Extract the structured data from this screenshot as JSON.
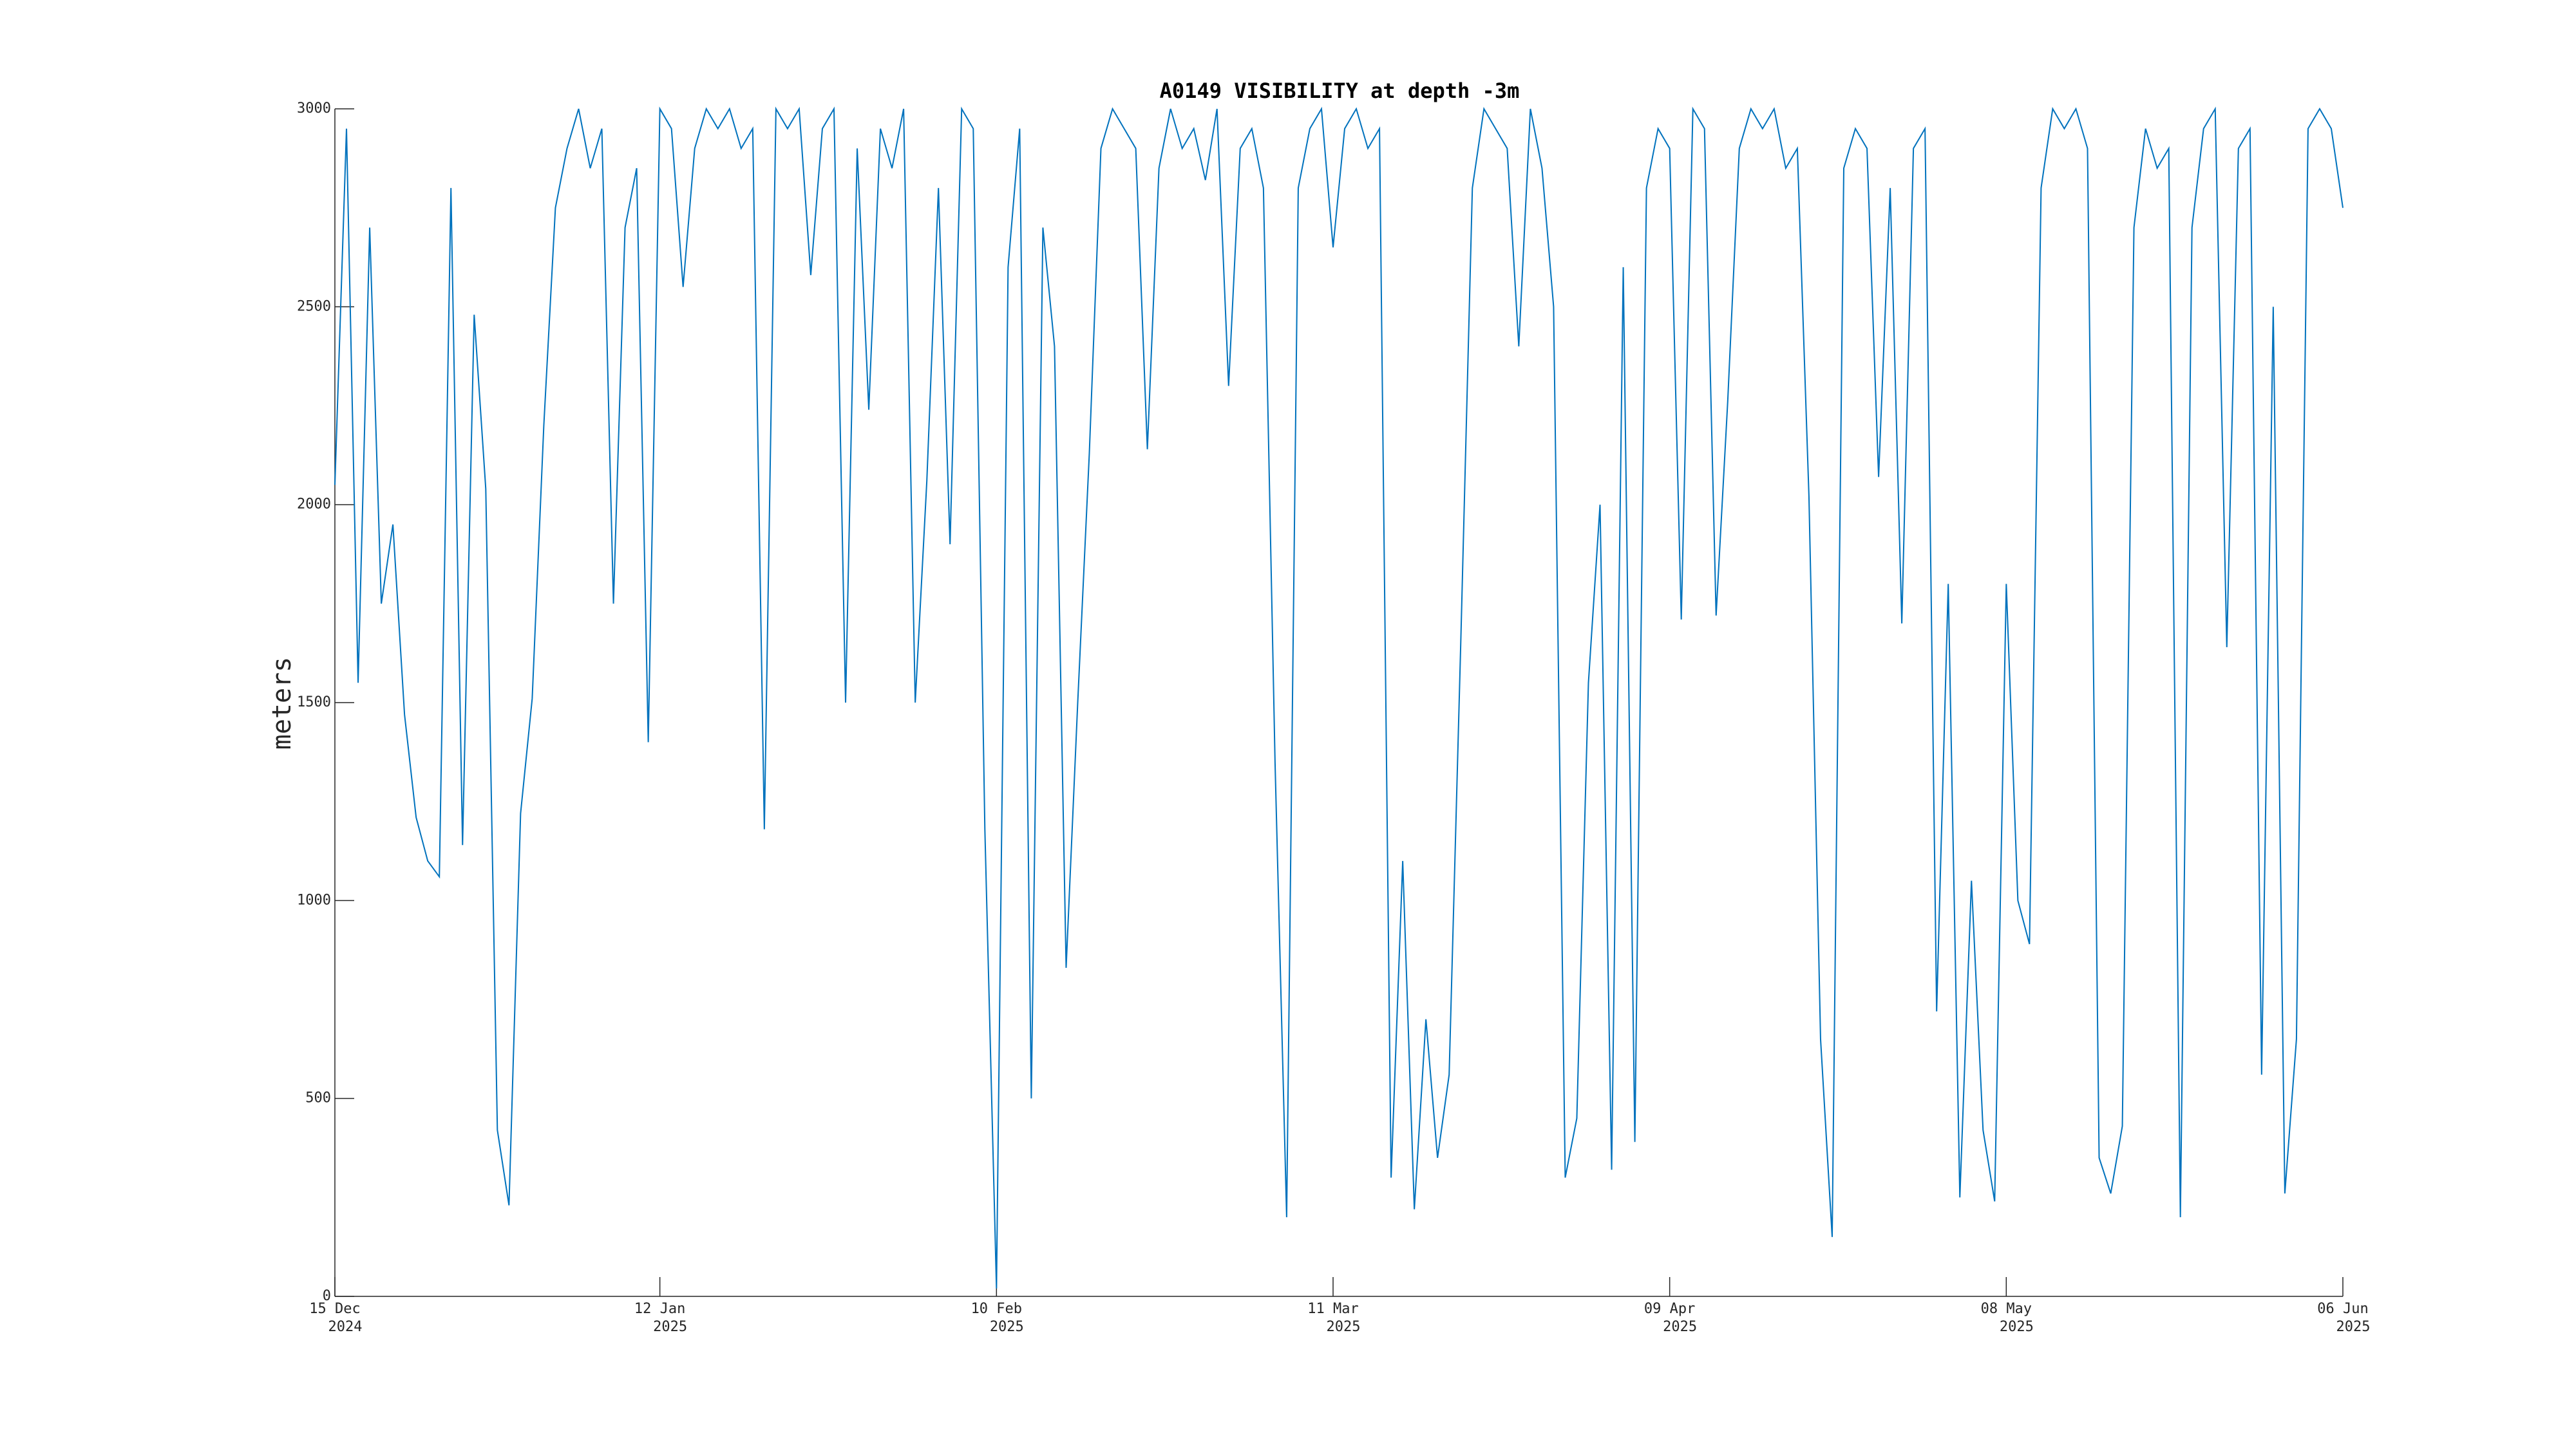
{
  "chart_data": {
    "type": "line",
    "title": "A0149 VISIBILITY at depth -3m",
    "y_label": "meters",
    "color": "#0072bd",
    "grid": false,
    "xlim": [
      "2024-12-15",
      "2025-06-06"
    ],
    "xticks": [
      {
        "value": "2024-12-15",
        "label": [
          "15 Dec",
          "2024"
        ]
      },
      {
        "value": "2025-01-12",
        "label": [
          "12 Jan",
          "2025"
        ]
      },
      {
        "value": "2025-02-10",
        "label": [
          "10 Feb",
          "2025"
        ]
      },
      {
        "value": "2025-03-11",
        "label": [
          "11 Mar",
          "2025"
        ]
      },
      {
        "value": "2025-04-09",
        "label": [
          "09 Apr",
          "2025"
        ]
      },
      {
        "value": "2025-05-08",
        "label": [
          "08 May",
          "2025"
        ]
      },
      {
        "value": "2025-06-06",
        "label": [
          "06 Jun",
          "2025"
        ]
      }
    ],
    "ylim": [
      0,
      3000
    ],
    "yticks": [
      0,
      500,
      1000,
      1500,
      2000,
      2500,
      3000
    ],
    "x": [
      "2024-12-15",
      "2024-12-16",
      "2024-12-17",
      "2024-12-18",
      "2024-12-19",
      "2024-12-20",
      "2024-12-21",
      "2024-12-22",
      "2024-12-23",
      "2024-12-24",
      "2024-12-25",
      "2024-12-26",
      "2024-12-27",
      "2024-12-28",
      "2024-12-29",
      "2024-12-30",
      "2024-12-31",
      "2025-01-01",
      "2025-01-02",
      "2025-01-03",
      "2025-01-04",
      "2025-01-05",
      "2025-01-06",
      "2025-01-07",
      "2025-01-08",
      "2025-01-09",
      "2025-01-10",
      "2025-01-11",
      "2025-01-12",
      "2025-01-13",
      "2025-01-14",
      "2025-01-15",
      "2025-01-16",
      "2025-01-17",
      "2025-01-18",
      "2025-01-19",
      "2025-01-20",
      "2025-01-21",
      "2025-01-22",
      "2025-01-23",
      "2025-01-24",
      "2025-01-25",
      "2025-01-26",
      "2025-01-27",
      "2025-01-28",
      "2025-01-29",
      "2025-01-30",
      "2025-01-31",
      "2025-02-01",
      "2025-02-02",
      "2025-02-03",
      "2025-02-04",
      "2025-02-05",
      "2025-02-06",
      "2025-02-07",
      "2025-02-08",
      "2025-02-09",
      "2025-02-10",
      "2025-02-11",
      "2025-02-12",
      "2025-02-13",
      "2025-02-14",
      "2025-02-15",
      "2025-02-16",
      "2025-02-17",
      "2025-02-18",
      "2025-02-19",
      "2025-02-20",
      "2025-02-21",
      "2025-02-22",
      "2025-02-23",
      "2025-02-24",
      "2025-02-25",
      "2025-02-26",
      "2025-02-27",
      "2025-02-28",
      "2025-03-01",
      "2025-03-02",
      "2025-03-03",
      "2025-03-04",
      "2025-03-05",
      "2025-03-06",
      "2025-03-07",
      "2025-03-08",
      "2025-03-09",
      "2025-03-10",
      "2025-03-11",
      "2025-03-12",
      "2025-03-13",
      "2025-03-14",
      "2025-03-15",
      "2025-03-16",
      "2025-03-17",
      "2025-03-18",
      "2025-03-19",
      "2025-03-20",
      "2025-03-21",
      "2025-03-22",
      "2025-03-23",
      "2025-03-24",
      "2025-03-25",
      "2025-03-26",
      "2025-03-27",
      "2025-03-28",
      "2025-03-29",
      "2025-03-30",
      "2025-03-31",
      "2025-04-01",
      "2025-04-02",
      "2025-04-03",
      "2025-04-04",
      "2025-04-05",
      "2025-04-06",
      "2025-04-07",
      "2025-04-08",
      "2025-04-09",
      "2025-04-10",
      "2025-04-11",
      "2025-04-12",
      "2025-04-13",
      "2025-04-14",
      "2025-04-15",
      "2025-04-16",
      "2025-04-17",
      "2025-04-18",
      "2025-04-19",
      "2025-04-20",
      "2025-04-21",
      "2025-04-22",
      "2025-04-23",
      "2025-04-24",
      "2025-04-25",
      "2025-04-26",
      "2025-04-27",
      "2025-04-28",
      "2025-04-29",
      "2025-04-30",
      "2025-05-01",
      "2025-05-02",
      "2025-05-03",
      "2025-05-04",
      "2025-05-05",
      "2025-05-06",
      "2025-05-07",
      "2025-05-08",
      "2025-05-09",
      "2025-05-10",
      "2025-05-11",
      "2025-05-12",
      "2025-05-13",
      "2025-05-14",
      "2025-05-15",
      "2025-05-16",
      "2025-05-17",
      "2025-05-18",
      "2025-05-19",
      "2025-05-20",
      "2025-05-21",
      "2025-05-22",
      "2025-05-23",
      "2025-05-24",
      "2025-05-25",
      "2025-05-26",
      "2025-05-27",
      "2025-05-28",
      "2025-05-29",
      "2025-05-30",
      "2025-05-31",
      "2025-06-01",
      "2025-06-02",
      "2025-06-03",
      "2025-06-04",
      "2025-06-05",
      "2025-06-06"
    ],
    "values": [
      2050,
      2950,
      1550,
      2700,
      1750,
      1950,
      1470,
      1210,
      1100,
      1060,
      2800,
      1140,
      2480,
      2040,
      420,
      230,
      1220,
      1510,
      2200,
      2750,
      2900,
      3000,
      2850,
      2950,
      1750,
      2700,
      2850,
      1400,
      3000,
      2950,
      2550,
      2900,
      3000,
      2950,
      3000,
      2900,
      2950,
      1180,
      3000,
      2950,
      3000,
      2580,
      2950,
      3000,
      1500,
      2900,
      2240,
      2950,
      2850,
      3000,
      1500,
      2060,
      2800,
      1900,
      3000,
      2950,
      1180,
      20,
      2600,
      2950,
      500,
      2700,
      2400,
      830,
      1500,
      2130,
      2900,
      3000,
      2950,
      2900,
      2140,
      2850,
      3000,
      2900,
      2950,
      2820,
      3000,
      2300,
      2900,
      2950,
      2800,
      1350,
      200,
      2800,
      2950,
      3000,
      2650,
      2950,
      3000,
      2900,
      2950,
      300,
      1100,
      220,
      700,
      350,
      560,
      1650,
      2800,
      3000,
      2950,
      2900,
      2400,
      3000,
      2850,
      2500,
      300,
      450,
      1550,
      2000,
      320,
      2600,
      390,
      2800,
      2950,
      2900,
      1710,
      3000,
      2950,
      1720,
      2260,
      2900,
      3000,
      2950,
      3000,
      2850,
      2900,
      2020,
      650,
      150,
      2850,
      2950,
      2900,
      2070,
      2800,
      1700,
      2900,
      2950,
      720,
      1800,
      250,
      1050,
      420,
      240,
      1800,
      1000,
      890,
      2800,
      3000,
      2950,
      3000,
      2900,
      350,
      260,
      430,
      2700,
      2950,
      2850,
      2900,
      200,
      2700,
      2950,
      3000,
      1640,
      2900,
      2950,
      560,
      2500,
      260,
      650,
      2950,
      3000,
      2950,
      2750
    ]
  }
}
